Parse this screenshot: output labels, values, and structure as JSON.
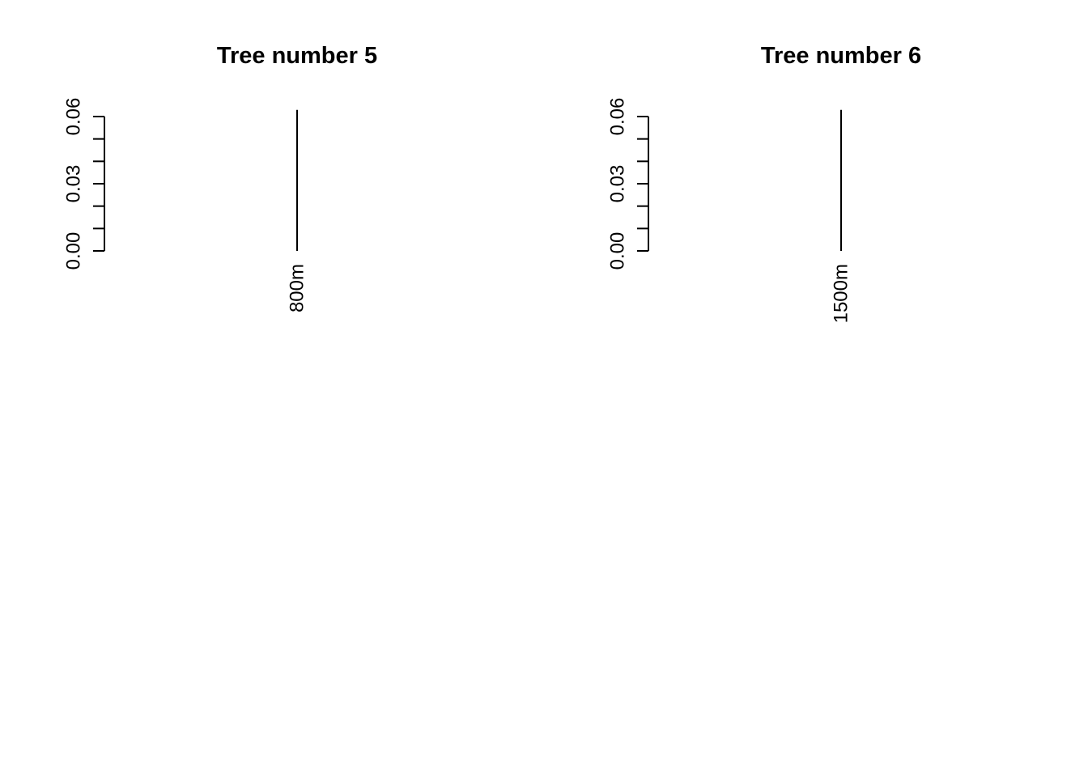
{
  "chart_data": [
    {
      "type": "dendrogram",
      "title": "Tree number 5",
      "ylim": [
        0,
        0.06
      ],
      "yticks": [
        0.0,
        0.01,
        0.02,
        0.03,
        0.04,
        0.05,
        0.06
      ],
      "ytick_labels": [
        "0.00",
        "0.03",
        "0.06"
      ],
      "ytick_label_values": [
        0.0,
        0.03,
        0.06
      ],
      "leaves": [
        {
          "label": "800m",
          "height": 0.063
        }
      ],
      "grid": false,
      "legend": "none"
    },
    {
      "type": "dendrogram",
      "title": "Tree number 6",
      "ylim": [
        0,
        0.06
      ],
      "yticks": [
        0.0,
        0.01,
        0.02,
        0.03,
        0.04,
        0.05,
        0.06
      ],
      "ytick_labels": [
        "0.00",
        "0.03",
        "0.06"
      ],
      "ytick_label_values": [
        0.0,
        0.03,
        0.06
      ],
      "leaves": [
        {
          "label": "1500m",
          "height": 0.063
        }
      ],
      "grid": false,
      "legend": "none"
    }
  ],
  "colors": {
    "axis": "#000000",
    "branch": "#000000",
    "background": "#ffffff"
  }
}
